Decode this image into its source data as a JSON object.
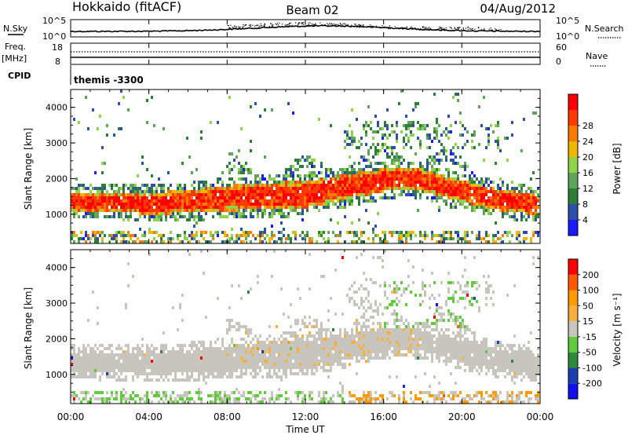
{
  "header": {
    "station": "Hokkaido (fitACF)",
    "beam": "Beam 02",
    "date": "04/Aug/2012"
  },
  "strip_panels": {
    "nsky": {
      "label": "N.Sky",
      "right_label": "N.Search",
      "left_ticks": [
        "10^5",
        "10^0"
      ],
      "right_ticks": [
        "10^5",
        "10^0"
      ]
    },
    "freq": {
      "label_top": "Freq.",
      "label_unit": "[MHz]",
      "left_ticks": [
        "18",
        "8"
      ],
      "right_label": "Nave",
      "right_ticks": [
        "60",
        "0"
      ]
    },
    "cpid": {
      "label": "CPID",
      "value": "themis -3300"
    }
  },
  "time_axis": {
    "xlabel": "Time UT",
    "ticks": [
      "00:00",
      "04:00",
      "08:00",
      "12:00",
      "16:00",
      "20:00",
      "00:00"
    ]
  },
  "colors": {
    "power_scale": [
      "#1a1aff",
      "#2d4fa8",
      "#2e7d3a",
      "#5ea45a",
      "#8fd34a",
      "#f0b800",
      "#ff7a00",
      "#ff3a00",
      "#ff0000"
    ],
    "velocity_scale": [
      "#ff0000",
      "#ff5a00",
      "#ff9a00",
      "#f5b040",
      "#c8c5bf",
      "#60cc3c",
      "#2e8a3a",
      "#1c3fb0",
      "#1010ee"
    ],
    "ground_scatter": "#c8c5bf"
  },
  "chart_data": [
    {
      "type": "heatmap",
      "name": "power",
      "ylabel": "Slant Range [km]",
      "xlabel": "",
      "xlim": [
        0,
        24
      ],
      "ylim": [
        180,
        4500
      ],
      "yticks": [
        "1000",
        "2000",
        "3000",
        "4000"
      ],
      "colorbar": {
        "label": "Power [dB]",
        "ticks": [
          "4",
          "8",
          "12",
          "16",
          "20",
          "24",
          "28"
        ],
        "range": [
          0,
          30
        ]
      },
      "main_band": {
        "time_h": [
          0,
          2,
          4,
          6,
          8,
          10,
          12,
          14,
          16,
          17,
          18,
          20,
          22,
          24
        ],
        "center_km": [
          1350,
          1350,
          1300,
          1350,
          1450,
          1500,
          1550,
          1750,
          1950,
          2000,
          1950,
          1650,
          1400,
          1250
        ],
        "halfwidth_km": [
          250,
          280,
          300,
          320,
          350,
          380,
          380,
          350,
          320,
          300,
          300,
          300,
          300,
          280
        ]
      }
    },
    {
      "type": "heatmap",
      "name": "velocity",
      "ylabel": "Slant Range [km]",
      "xlabel": "Time UT",
      "xlim": [
        0,
        24
      ],
      "ylim": [
        180,
        4500
      ],
      "yticks": [
        "1000",
        "2000",
        "3000",
        "4000"
      ],
      "colorbar": {
        "label": "Velocity [m s⁻¹]",
        "ticks": [
          "200",
          "100",
          "50",
          "15",
          "-15",
          "-50",
          "-100",
          "-200"
        ],
        "range": [
          -250,
          250
        ]
      }
    }
  ]
}
